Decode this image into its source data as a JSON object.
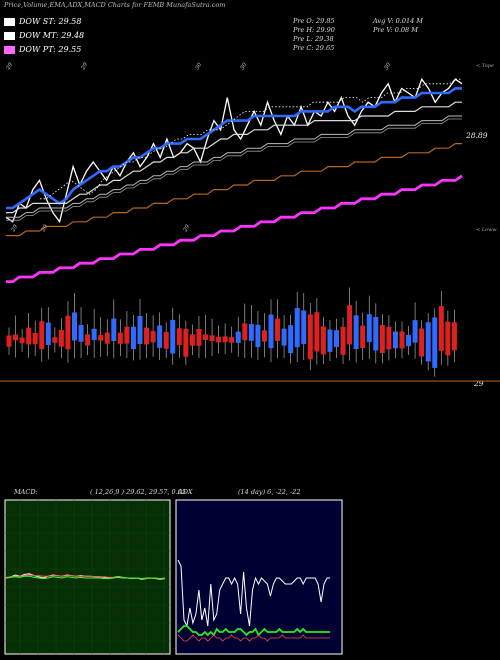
{
  "title": "Price,Volume,EMA,ADX,MACD Charts for FEMB MunafaSutra.com",
  "legend": [
    {
      "label": "DOW ST: 29.58",
      "color": "#ffffff"
    },
    {
      "label": "DOW MT: 29.48",
      "color": "#ffffff"
    },
    {
      "label": "DOW PT: 29.55",
      "color": "#ff66ff"
    }
  ],
  "stats": {
    "prev_open": "Pre  O: 29.85",
    "prev_high": "Pre  H: 29.90",
    "prev_low": "Pre  L: 29.38",
    "prev_close": "Pre  C: 29.65",
    "avg_volume": "Avg V: 0.014  M",
    "prev_volume": "Pre  V: 0.08  M"
  },
  "price_labels": {
    "upper": "28.89",
    "lower": "29"
  },
  "top_marker": "< Tope",
  "low_marker": "< Loww",
  "date_labels": [
    "29",
    "29",
    "30",
    "30",
    "30",
    "29",
    "29",
    "29"
  ],
  "macd": {
    "label": "MACD:",
    "params": "( 12,26,9 ) 29.62, 29.57, 0.05"
  },
  "adx": {
    "label": "ADX",
    "params": "(14  day) 6,  -22, -22"
  },
  "chart_data": [
    {
      "type": "line",
      "name": "price",
      "series": [
        {
          "values": [
            27.3,
            27.2,
            27.6,
            27.5,
            27.9,
            28.1,
            27.7,
            27.4,
            27.2,
            27.8,
            28.4,
            28.0,
            28.3,
            28.5,
            28.3,
            28.1,
            28.4,
            28.2,
            28.5,
            28.7,
            28.4,
            28.6,
            28.9,
            28.6,
            29.0,
            28.6,
            28.7,
            28.9,
            28.8,
            28.5,
            29.0,
            29.4,
            29.2,
            29.9,
            29.2,
            29.0,
            29.3,
            29.6,
            29.3,
            29.8,
            29.4,
            29.1,
            29.5,
            29.3,
            29.7,
            29.3,
            29.6,
            29.5,
            29.8,
            29.6,
            29.9,
            29.5,
            29.3,
            29.6,
            29.8,
            29.7,
            30.0,
            30.2,
            29.8,
            30.1,
            30.0,
            29.9,
            30.3,
            30.1,
            29.8,
            30.0,
            30.1,
            30.3,
            30.2
          ]
        },
        {
          "values": [
            27.5,
            27.5,
            27.6,
            27.7,
            27.8,
            27.9,
            27.8,
            27.7,
            27.6,
            27.7,
            27.9,
            28.0,
            28.1,
            28.2,
            28.3,
            28.3,
            28.4,
            28.4,
            28.5,
            28.6,
            28.6,
            28.7,
            28.8,
            28.8,
            28.9,
            28.9,
            28.9,
            29.0,
            29.0,
            29.0,
            29.1,
            29.2,
            29.3,
            29.4,
            29.4,
            29.4,
            29.4,
            29.5,
            29.5,
            29.5,
            29.5,
            29.5,
            29.5,
            29.5,
            29.6,
            29.6,
            29.6,
            29.6,
            29.6,
            29.7,
            29.7,
            29.7,
            29.6,
            29.7,
            29.7,
            29.7,
            29.8,
            29.8,
            29.8,
            29.9,
            29.9,
            29.9,
            30.0,
            30.0,
            30.0,
            30.0,
            30.0,
            30.1,
            30.1
          ]
        },
        {
          "values": [
            27.4,
            27.4,
            27.5,
            27.5,
            27.6,
            27.6,
            27.6,
            27.6,
            27.6,
            27.6,
            27.7,
            27.8,
            27.8,
            27.9,
            28.0,
            28.0,
            28.1,
            28.1,
            28.2,
            28.3,
            28.3,
            28.4,
            28.5,
            28.5,
            28.6,
            28.6,
            28.7,
            28.7,
            28.8,
            28.8,
            28.8,
            28.9,
            29.0,
            29.0,
            29.1,
            29.1,
            29.1,
            29.2,
            29.2,
            29.2,
            29.3,
            29.3,
            29.3,
            29.3,
            29.3,
            29.3,
            29.4,
            29.4,
            29.4,
            29.4,
            29.4,
            29.4,
            29.4,
            29.5,
            29.5,
            29.5,
            29.5,
            29.5,
            29.6,
            29.6,
            29.6,
            29.6,
            29.7,
            29.7,
            29.7,
            29.7,
            29.7,
            29.8,
            29.8
          ]
        },
        {
          "values": [
            27.3,
            27.3,
            27.3,
            27.4,
            27.4,
            27.5,
            27.5,
            27.5,
            27.5,
            27.5,
            27.6,
            27.6,
            27.7,
            27.7,
            27.8,
            27.8,
            27.9,
            27.9,
            28.0,
            28.0,
            28.1,
            28.1,
            28.2,
            28.2,
            28.3,
            28.3,
            28.4,
            28.4,
            28.5,
            28.5,
            28.5,
            28.6,
            28.6,
            28.7,
            28.7,
            28.7,
            28.8,
            28.8,
            28.8,
            28.9,
            28.9,
            28.9,
            28.9,
            29.0,
            29.0,
            29.0,
            29.0,
            29.1,
            29.1,
            29.1,
            29.1,
            29.1,
            29.2,
            29.2,
            29.2,
            29.2,
            29.2,
            29.3,
            29.3,
            29.3,
            29.3,
            29.3,
            29.4,
            29.4,
            29.4,
            29.4,
            29.5,
            29.5,
            29.5
          ]
        },
        {
          "values": [
            26.9,
            26.9,
            26.9,
            27.0,
            27.0,
            27.0,
            27.1,
            27.1,
            27.1,
            27.1,
            27.2,
            27.2,
            27.2,
            27.3,
            27.3,
            27.3,
            27.4,
            27.4,
            27.4,
            27.5,
            27.5,
            27.5,
            27.6,
            27.6,
            27.6,
            27.7,
            27.7,
            27.7,
            27.8,
            27.8,
            27.8,
            27.9,
            27.9,
            27.9,
            28.0,
            28.0,
            28.0,
            28.1,
            28.1,
            28.1,
            28.1,
            28.2,
            28.2,
            28.2,
            28.3,
            28.3,
            28.3,
            28.3,
            28.4,
            28.4,
            28.4,
            28.4,
            28.5,
            28.5,
            28.5,
            28.5,
            28.6,
            28.6,
            28.6,
            28.6,
            28.7,
            28.7,
            28.7,
            28.7,
            28.8,
            28.8,
            28.8,
            28.9,
            28.9
          ]
        },
        {
          "values": [
            25.9,
            25.9,
            26.0,
            26.0,
            26.0,
            26.1,
            26.1,
            26.1,
            26.2,
            26.2,
            26.2,
            26.3,
            26.3,
            26.3,
            26.4,
            26.4,
            26.4,
            26.5,
            26.5,
            26.5,
            26.6,
            26.6,
            26.6,
            26.7,
            26.7,
            26.7,
            26.8,
            26.8,
            26.8,
            26.9,
            26.9,
            26.9,
            27.0,
            27.0,
            27.0,
            27.1,
            27.1,
            27.1,
            27.2,
            27.2,
            27.2,
            27.3,
            27.3,
            27.3,
            27.4,
            27.4,
            27.4,
            27.5,
            27.5,
            27.5,
            27.6,
            27.6,
            27.6,
            27.7,
            27.7,
            27.7,
            27.8,
            27.8,
            27.8,
            27.9,
            27.9,
            27.9,
            28.0,
            28.0,
            28.0,
            28.1,
            28.1,
            28.1,
            28.2
          ]
        }
      ]
    },
    {
      "type": "bar",
      "name": "volume",
      "values": [
        0.02,
        0.01,
        0.01,
        0.03,
        0.02,
        0.05,
        0.04,
        0.01,
        0.03,
        0.06,
        0.05,
        0.03,
        0.02,
        0.02,
        0.01,
        0.02,
        0.04,
        0.02,
        0.03,
        0.04,
        0.05,
        0.03,
        0.02,
        0.04,
        0.03,
        0.06,
        0.03,
        0.05,
        0.02,
        0.03,
        0.01,
        0.01,
        0.01,
        0.01,
        0.01,
        0.02,
        0.03,
        0.03,
        0.04,
        0.02,
        0.06,
        0.04,
        0.03,
        0.05,
        0.07,
        0.06,
        0.08,
        0.07,
        0.05,
        0.04,
        0.03,
        0.05,
        0.07,
        0.06,
        0.04,
        0.05,
        0.06,
        0.05,
        0.04,
        0.03,
        0.03,
        0.02,
        0.04,
        0.05,
        0.07,
        0.09,
        0.08,
        0.06,
        0.05
      ],
      "colors": [
        "r",
        "r",
        "r",
        "r",
        "r",
        "r",
        "b",
        "r",
        "r",
        "r",
        "b",
        "b",
        "r",
        "b",
        "r",
        "r",
        "b",
        "r",
        "r",
        "b",
        "b",
        "r",
        "r",
        "b",
        "r",
        "b",
        "r",
        "r",
        "r",
        "r",
        "r",
        "r",
        "r",
        "r",
        "r",
        "b",
        "r",
        "b",
        "b",
        "r",
        "b",
        "r",
        "b",
        "b",
        "b",
        "b",
        "r",
        "r",
        "r",
        "b",
        "b",
        "r",
        "r",
        "b",
        "r",
        "b",
        "b",
        "r",
        "r",
        "b",
        "r",
        "b",
        "b",
        "r",
        "b",
        "b",
        "r",
        "r",
        "r"
      ]
    },
    {
      "type": "line",
      "name": "macd",
      "series": [
        {
          "values": [
            0.0,
            0.02,
            0.05,
            0.03,
            0.06,
            0.07,
            0.04,
            0.02,
            0.0,
            0.03,
            0.05,
            0.04,
            0.03,
            0.05,
            0.04,
            0.03,
            0.04,
            0.03,
            0.03,
            0.02,
            0.02,
            0.01,
            0.0,
            0.01,
            0.02,
            0.01,
            0.0,
            -0.01,
            0.0,
            -0.02,
            -0.01,
            0.0,
            -0.01,
            -0.02,
            -0.01
          ]
        },
        {
          "values": [
            0.01,
            0.02,
            0.03,
            0.03,
            0.04,
            0.05,
            0.04,
            0.04,
            0.03,
            0.03,
            0.04,
            0.04,
            0.03,
            0.04,
            0.04,
            0.03,
            0.03,
            0.03,
            0.03,
            0.02,
            0.02,
            0.02,
            0.01,
            0.01,
            0.01,
            0.01,
            0.0,
            0.0,
            0.0,
            -0.01,
            -0.01,
            0.0,
            -0.01,
            -0.01,
            -0.01
          ]
        },
        {
          "values": [
            0.0,
            0.01,
            0.02,
            0.01,
            0.03,
            0.03,
            0.01,
            0.0,
            -0.01,
            0.0,
            0.02,
            0.01,
            0.0,
            0.02,
            0.01,
            0.0,
            0.01,
            0.0,
            0.0,
            0.0,
            0.0,
            -0.01,
            -0.01,
            0.0,
            0.01,
            0.0,
            0.0,
            -0.01,
            0.0,
            -0.01,
            0.0,
            0.0,
            0.0,
            -0.01,
            0.0
          ]
        }
      ]
    },
    {
      "type": "line",
      "name": "adx",
      "series": [
        {
          "values": [
            30,
            28,
            10,
            8,
            14,
            9,
            12,
            20,
            10,
            14,
            8,
            22,
            10,
            12,
            20,
            22,
            24,
            24,
            22,
            24,
            22,
            12,
            26,
            14,
            8,
            20,
            24,
            22,
            24,
            23,
            22,
            18,
            22,
            24,
            24,
            23,
            22,
            22,
            22,
            23,
            24,
            24,
            22,
            24,
            24,
            24,
            24,
            22,
            16,
            22,
            24,
            24
          ]
        },
        {
          "values": [
            6,
            7,
            8,
            8,
            7,
            6,
            6,
            5,
            5,
            6,
            5,
            6,
            5,
            7,
            6,
            6,
            7,
            6,
            6,
            6,
            7,
            7,
            6,
            5,
            6,
            6,
            7,
            5,
            6,
            7,
            6,
            6,
            6,
            6,
            7,
            6,
            6,
            6,
            6,
            6,
            7,
            6,
            7,
            6,
            6,
            6,
            6,
            6,
            6,
            6,
            6,
            6
          ]
        },
        {
          "values": [
            5,
            4,
            3,
            3,
            4,
            5,
            4,
            3,
            4,
            4,
            3,
            4,
            5,
            4,
            4,
            3,
            4,
            4,
            5,
            4,
            4,
            3,
            4,
            4,
            3,
            4,
            4,
            5,
            4,
            4,
            3,
            4,
            4,
            4,
            4,
            5,
            4,
            4,
            4,
            4,
            4,
            4,
            5,
            4,
            4,
            4,
            4,
            4,
            4,
            4,
            4,
            4
          ]
        }
      ]
    }
  ]
}
